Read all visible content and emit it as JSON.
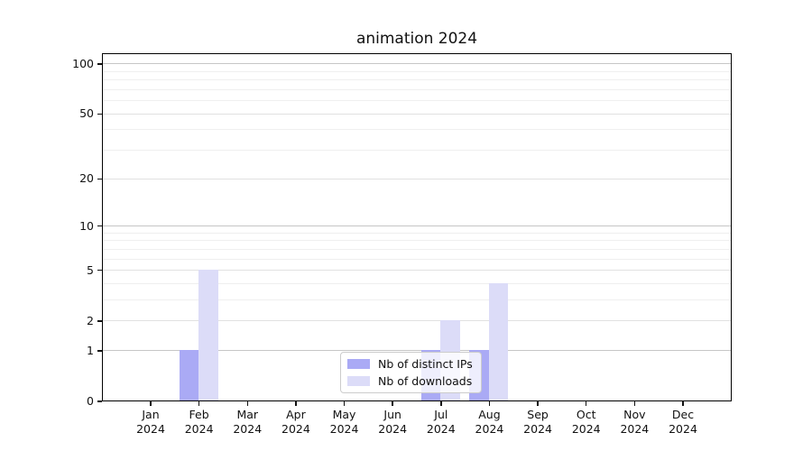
{
  "chart_data": {
    "type": "bar",
    "title": "animation 2024",
    "categories": [
      "Jan 2024",
      "Feb 2024",
      "Mar 2024",
      "Apr 2024",
      "May 2024",
      "Jun 2024",
      "Jul 2024",
      "Aug 2024",
      "Sep 2024",
      "Oct 2024",
      "Nov 2024",
      "Dec 2024"
    ],
    "months": [
      "Jan",
      "Feb",
      "Mar",
      "Apr",
      "May",
      "Jun",
      "Jul",
      "Aug",
      "Sep",
      "Oct",
      "Nov",
      "Dec"
    ],
    "year_label": "2024",
    "series": [
      {
        "name": "Nb of distinct IPs",
        "color": "#aaaaf5",
        "values": [
          0,
          1,
          0,
          0,
          0,
          0,
          1,
          1,
          0,
          0,
          0,
          0
        ]
      },
      {
        "name": "Nb of downloads",
        "color": "#dcdcf8",
        "values": [
          0,
          5,
          0,
          0,
          0,
          0,
          2,
          4,
          0,
          0,
          0,
          0
        ]
      }
    ],
    "xlabel": "",
    "ylabel": "",
    "yscale": "log1p",
    "ylim": [
      0,
      116
    ],
    "yticks": [
      0,
      1,
      2,
      5,
      10,
      20,
      50,
      100
    ],
    "ytick_labels": [
      "0",
      "1",
      "2",
      "5",
      "10",
      "20",
      "50",
      "100"
    ],
    "gridlines_decade": [
      1,
      10,
      100
    ],
    "gridlines_mid": [
      2,
      5,
      20,
      50
    ],
    "gridlines_minor": [
      3,
      4,
      6,
      7,
      8,
      9,
      30,
      40,
      60,
      70,
      80,
      90
    ],
    "grid": true,
    "legend_position": "lower-center"
  }
}
